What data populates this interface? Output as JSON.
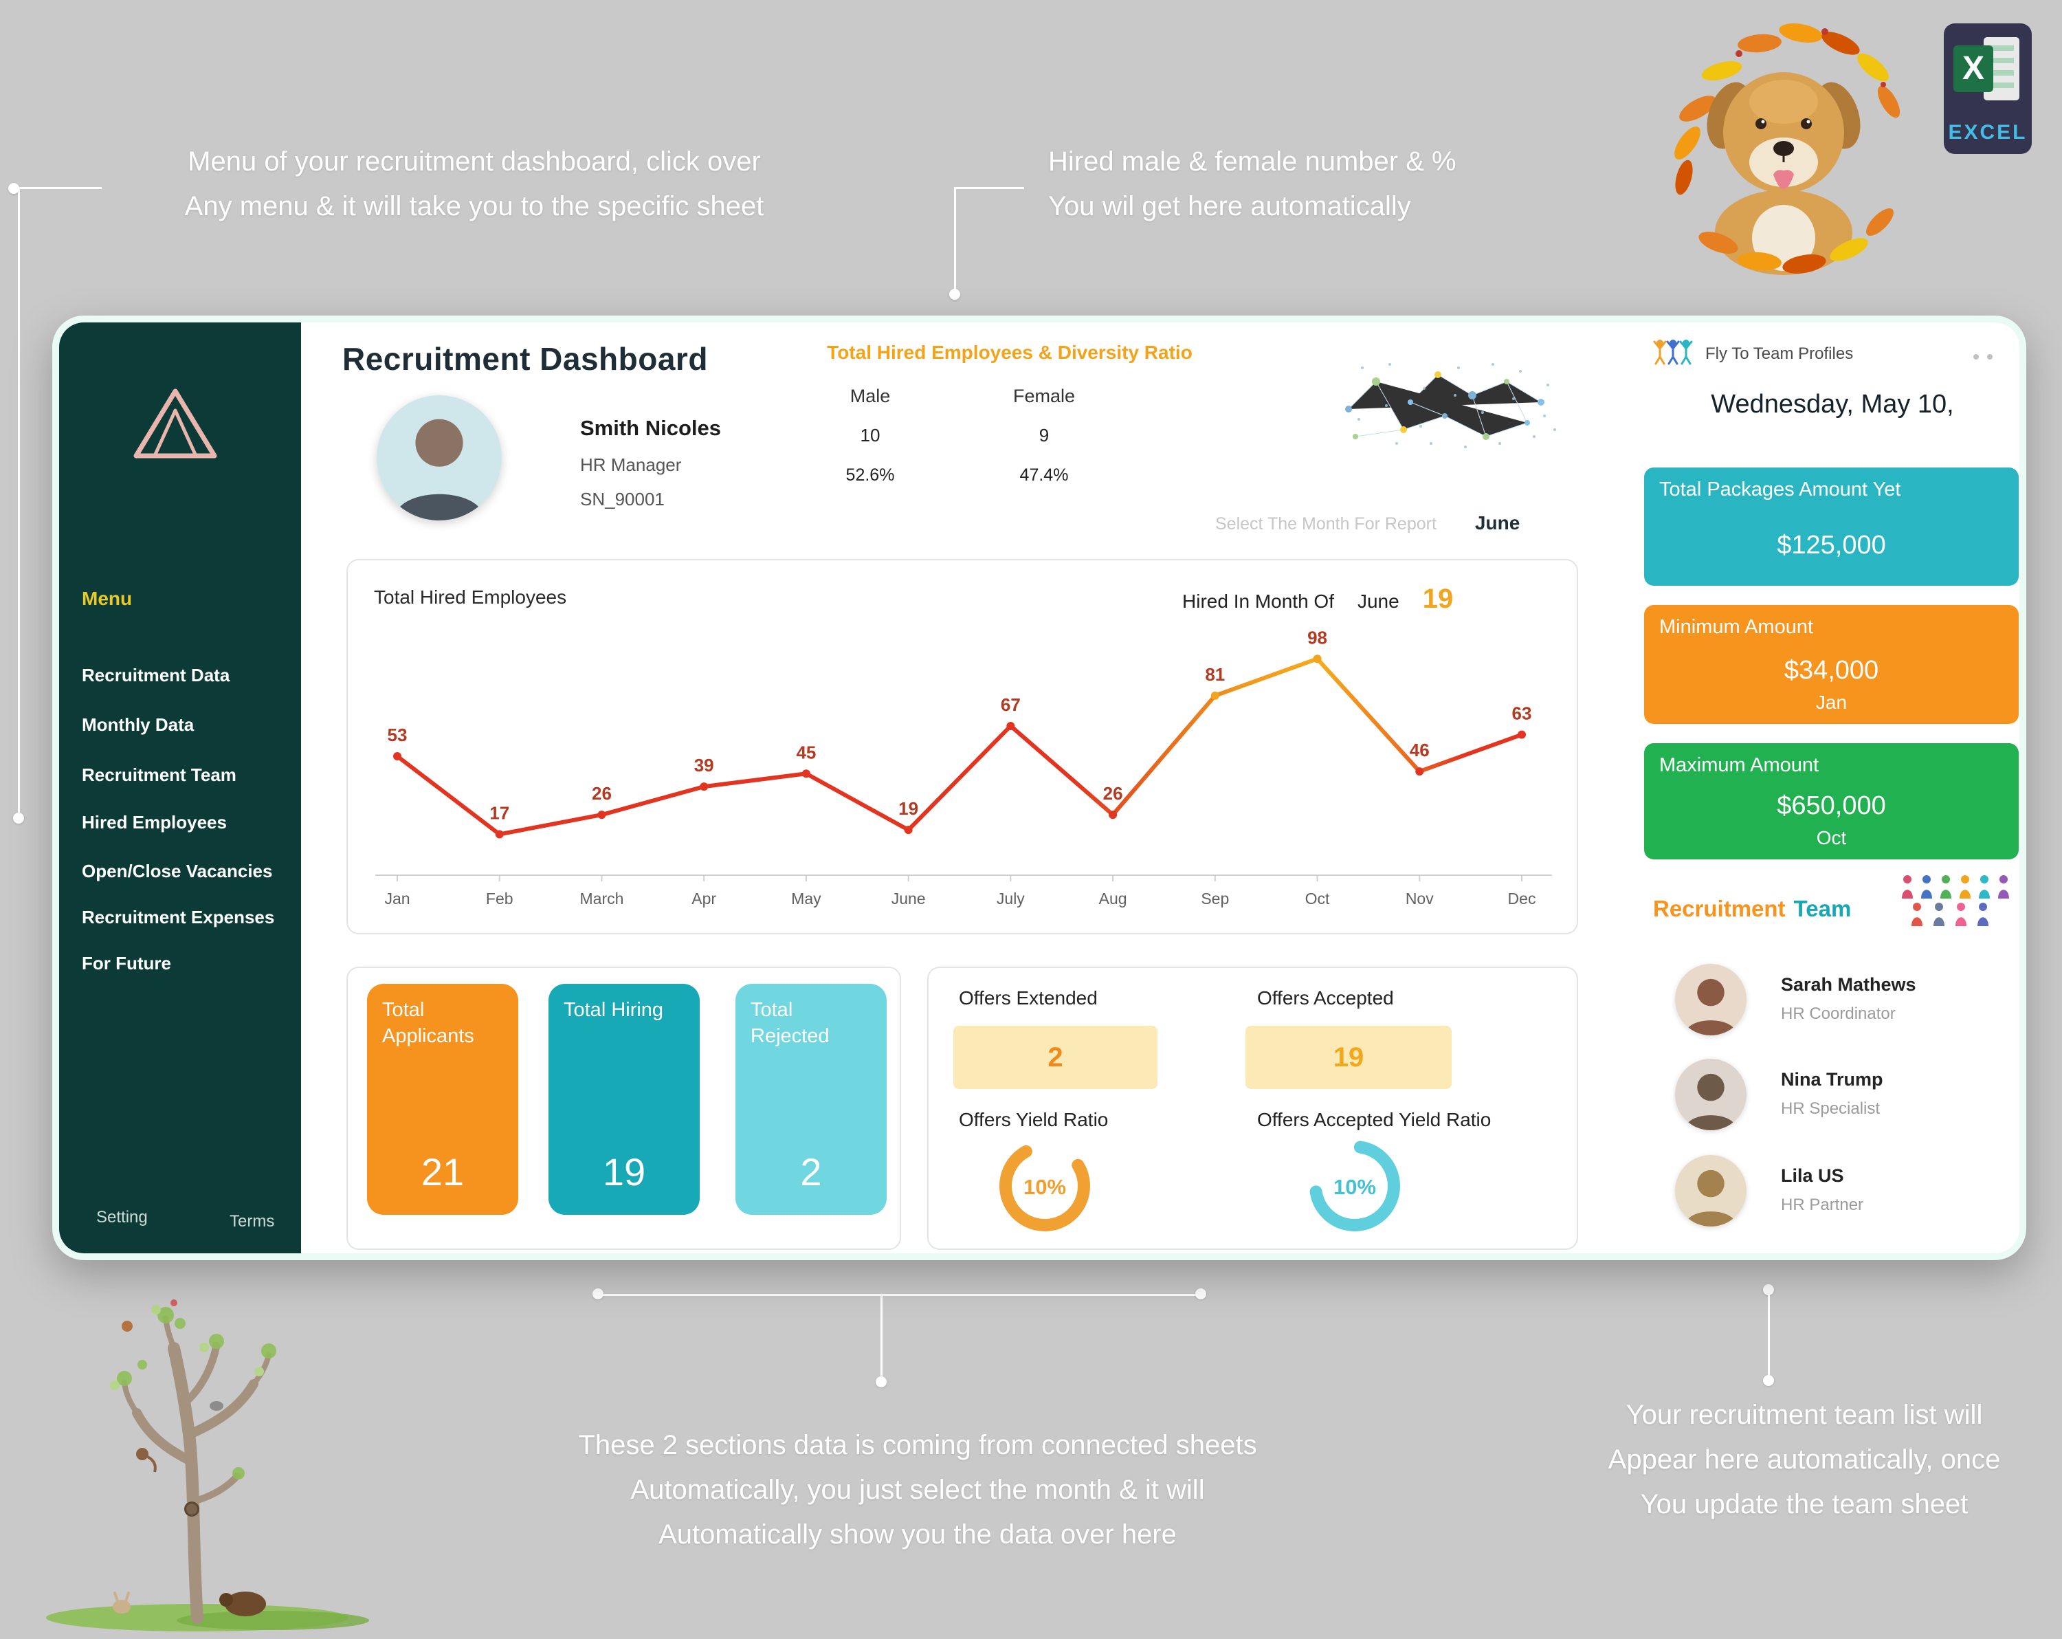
{
  "annotations": {
    "top_left_line1": "Menu of your recruitment dashboard, click over",
    "top_left_line2": "Any menu & it will take you to the specific sheet",
    "top_mid_line1": "Hired male & female number & %",
    "top_mid_line2": "You wil get here automatically",
    "bottom_mid_line1": "These 2 sections data is coming from connected sheets",
    "bottom_mid_line2": "Automatically, you just select the month & it will",
    "bottom_mid_line3": "Automatically show you the data over here",
    "bottom_right_line1": "Your recruitment team list will",
    "bottom_right_line2": "Appear here automatically, once",
    "bottom_right_line3": "You update the team sheet"
  },
  "logo": {
    "excel_label": "EXCEL",
    "excel_letter": "X"
  },
  "sidebar": {
    "menu_label": "Menu",
    "items": [
      "Recruitment Data",
      "Monthly Data",
      "Recruitment Team",
      "Hired Employees",
      "Open/Close Vacancies",
      "Recruitment Expenses",
      "For Future"
    ],
    "setting": "Setting",
    "terms": "Terms"
  },
  "header": {
    "title": "Recruitment Dashboard",
    "profile": {
      "name": "Smith Nicoles",
      "role": "HR Manager",
      "id": "SN_90001"
    },
    "diversity": {
      "title": "Total Hired Employees & Diversity Ratio",
      "male_label": "Male",
      "female_label": "Female",
      "male_count": "10",
      "female_count": "9",
      "male_pct": "52.6%",
      "female_pct": "47.4%"
    },
    "month_select_label": "Select The Month For Report",
    "month_value": "June"
  },
  "chart_card": {
    "title": "Total Hired Employees",
    "hired_prefix": "Hired In Month Of",
    "hired_month": "June",
    "hired_value": "19"
  },
  "chart_data": {
    "type": "line",
    "title": "Total Hired Employees",
    "categories": [
      "Jan",
      "Feb",
      "March",
      "Apr",
      "May",
      "June",
      "July",
      "Aug",
      "Sep",
      "Oct",
      "Nov",
      "Dec"
    ],
    "values": [
      53,
      17,
      26,
      39,
      45,
      19,
      67,
      26,
      81,
      98,
      46,
      63
    ],
    "ylim": [
      0,
      110
    ],
    "grid": false,
    "legend": false,
    "line_colors": {
      "main": "#e23420",
      "peak": "#f2a41c"
    },
    "label_color": "#b23b22"
  },
  "stats": [
    {
      "label": "Total Applicants",
      "value": "21",
      "color": "#f6921e"
    },
    {
      "label": "Total Hiring",
      "value": "19",
      "color": "#17a9b6"
    },
    {
      "label": "Total Rejected",
      "value": "2",
      "color": "#70d6e0"
    }
  ],
  "offers": {
    "extended_label": "Offers Extended",
    "extended_value": "2",
    "accepted_label": "Offers Accepted",
    "accepted_value": "19",
    "yield_label": "Offers Yield Ratio",
    "yield_value": "10%",
    "accepted_yield_label": "Offers Accepted Yield Ratio",
    "accepted_yield_value": "10%"
  },
  "panel": {
    "fly_label": "Fly To Team Profiles",
    "date": "Wednesday, May 10,",
    "cards": [
      {
        "title": "Total Packages Amount Yet",
        "amount": "$125,000",
        "sub": "",
        "color": "#2ab5c3"
      },
      {
        "title": "Minimum Amount",
        "amount": "$34,000",
        "sub": "Jan",
        "color": "#f7941e"
      },
      {
        "title": "Maximum Amount",
        "amount": "$650,000",
        "sub": "Oct",
        "color": "#22b150"
      }
    ],
    "team_heading_1": "Recruitment",
    "team_heading_2": "Team",
    "members": [
      {
        "name": "Sarah Mathews",
        "role": "HR Coordinator"
      },
      {
        "name": "Nina Trump",
        "role": "HR Specialist"
      },
      {
        "name": "Lila US",
        "role": "HR Partner"
      }
    ]
  }
}
